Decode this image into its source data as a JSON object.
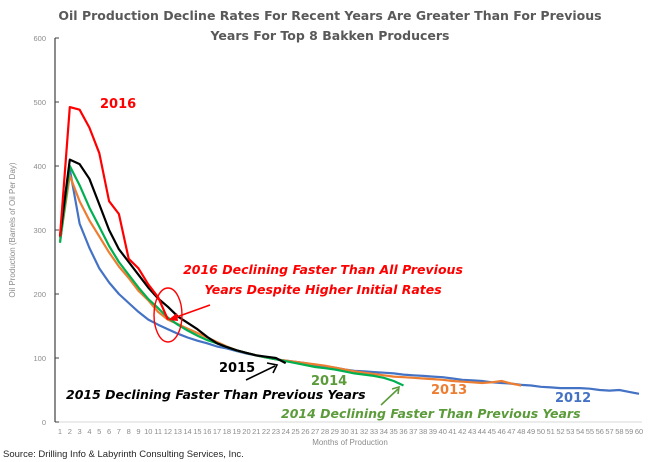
{
  "chart_data": {
    "type": "line",
    "title": "Oil Production Decline Rates For Recent Years Are Greater Than For Previous Years For Top 8 Bakken Producers",
    "title_lines": [
      "Oil Production Decline Rates For Recent Years Are Greater Than For Previous",
      "Years For Top 8 Bakken Producers"
    ],
    "xlabel": "Months of Production",
    "ylabel": "Oil Production (Barrels of Oil Per Day)",
    "ylim": [
      0,
      600
    ],
    "xlim": [
      1,
      60
    ],
    "yticks": [
      0,
      100,
      200,
      300,
      400,
      500,
      600
    ],
    "xticks": [
      1,
      2,
      3,
      4,
      5,
      6,
      7,
      8,
      9,
      10,
      11,
      12,
      13,
      14,
      15,
      16,
      17,
      18,
      19,
      20,
      21,
      22,
      23,
      24,
      25,
      26,
      27,
      28,
      29,
      30,
      31,
      32,
      33,
      34,
      35,
      36,
      37,
      38,
      39,
      40,
      41,
      42,
      43,
      44,
      45,
      46,
      47,
      48,
      49,
      50,
      51,
      52,
      53,
      54,
      55,
      56,
      57,
      58,
      59,
      60
    ],
    "grid": false,
    "legend": "none (inline labels)",
    "series": [
      {
        "name": "2012",
        "color": "#4472c4",
        "x": [
          1,
          2,
          3,
          4,
          5,
          6,
          7,
          8,
          9,
          10,
          11,
          12,
          13,
          14,
          15,
          16,
          17,
          18,
          19,
          20,
          21,
          22,
          23,
          24,
          25,
          26,
          27,
          28,
          29,
          30,
          31,
          32,
          33,
          34,
          35,
          36,
          37,
          38,
          39,
          40,
          41,
          42,
          43,
          44,
          45,
          46,
          47,
          48,
          49,
          50,
          51,
          52,
          53,
          54,
          55,
          56,
          57,
          58,
          59,
          60
        ],
        "values": [
          288,
          395,
          310,
          272,
          240,
          218,
          200,
          186,
          172,
          160,
          152,
          145,
          138,
          132,
          127,
          123,
          118,
          115,
          111,
          107,
          104,
          101,
          98,
          96,
          94,
          92,
          89,
          87,
          85,
          82,
          80,
          79,
          78,
          77,
          76,
          74,
          73,
          72,
          71,
          70,
          68,
          66,
          65,
          64,
          62,
          61,
          60,
          58,
          57,
          55,
          54,
          53,
          53,
          53,
          52,
          50,
          49,
          50,
          47,
          44
        ]
      },
      {
        "name": "2013",
        "color": "#ed7d31",
        "x": [
          1,
          2,
          3,
          4,
          5,
          6,
          7,
          8,
          9,
          10,
          11,
          12,
          13,
          14,
          15,
          16,
          17,
          18,
          19,
          20,
          21,
          22,
          23,
          24,
          25,
          26,
          27,
          28,
          29,
          30,
          31,
          32,
          33,
          34,
          35,
          36,
          37,
          38,
          39,
          40,
          41,
          42,
          43,
          44,
          45,
          46,
          47,
          48
        ],
        "values": [
          282,
          385,
          345,
          315,
          290,
          265,
          243,
          225,
          205,
          190,
          172,
          160,
          153,
          146,
          139,
          132,
          125,
          118,
          112,
          108,
          104,
          101,
          98,
          96,
          94,
          92,
          90,
          88,
          85,
          82,
          79,
          77,
          75,
          73,
          71,
          70,
          69,
          68,
          67,
          66,
          64,
          63,
          62,
          61,
          62,
          64,
          60,
          57
        ]
      },
      {
        "name": "2014",
        "color": "#00b050",
        "x": [
          1,
          2,
          3,
          4,
          5,
          6,
          7,
          8,
          9,
          10,
          11,
          12,
          13,
          14,
          15,
          16,
          17,
          18,
          19,
          20,
          21,
          22,
          23,
          24,
          25,
          26,
          27,
          28,
          29,
          30,
          31,
          32,
          33,
          34,
          35,
          36
        ],
        "values": [
          280,
          400,
          370,
          335,
          305,
          275,
          250,
          230,
          210,
          192,
          178,
          163,
          152,
          143,
          135,
          128,
          123,
          117,
          112,
          108,
          104,
          101,
          98,
          95,
          92,
          89,
          86,
          84,
          82,
          79,
          76,
          74,
          72,
          69,
          64,
          57
        ]
      },
      {
        "name": "2015",
        "color": "#000000",
        "x": [
          1,
          2,
          3,
          4,
          5,
          6,
          7,
          8,
          9,
          10,
          11,
          12,
          13,
          14,
          15,
          16,
          17,
          18,
          19,
          20,
          21,
          22,
          23,
          24
        ],
        "values": [
          290,
          410,
          403,
          380,
          340,
          300,
          270,
          250,
          230,
          210,
          193,
          180,
          165,
          155,
          145,
          133,
          123,
          117,
          112,
          108,
          104,
          102,
          100,
          92
        ]
      },
      {
        "name": "2016",
        "color": "#ff0000",
        "x": [
          1,
          2,
          3,
          4,
          5,
          6,
          7,
          8,
          9,
          10,
          11,
          12
        ],
        "values": [
          290,
          492,
          488,
          460,
          420,
          345,
          325,
          255,
          240,
          215,
          195,
          160
        ]
      }
    ],
    "annotations": [
      {
        "text": "2016",
        "color": "#ff0000",
        "kind": "series-label"
      },
      {
        "text": "2015",
        "color": "#000000",
        "kind": "series-label"
      },
      {
        "text": "2014",
        "color": "#5b9b3a",
        "kind": "series-label"
      },
      {
        "text": "2013",
        "color": "#ed7d31",
        "kind": "series-label"
      },
      {
        "text": "2012",
        "color": "#4472c4",
        "kind": "series-label"
      },
      {
        "text_lines": [
          "2016 Declining Faster Than All Previous",
          "Years Despite Higher Initial Rates"
        ],
        "color": "#ff0000",
        "kind": "callout",
        "points_to_month": 12
      },
      {
        "text": "2015 Declining Faster Than Previous Years",
        "color": "#000000",
        "kind": "callout",
        "points_to_month": 24
      },
      {
        "text": "2014 Declining Faster Than Previous Years",
        "color": "#5b9b3a",
        "kind": "callout",
        "points_to_month": 36
      }
    ],
    "source": "Source: Drilling Info & Labyrinth Consulting Services, Inc."
  }
}
